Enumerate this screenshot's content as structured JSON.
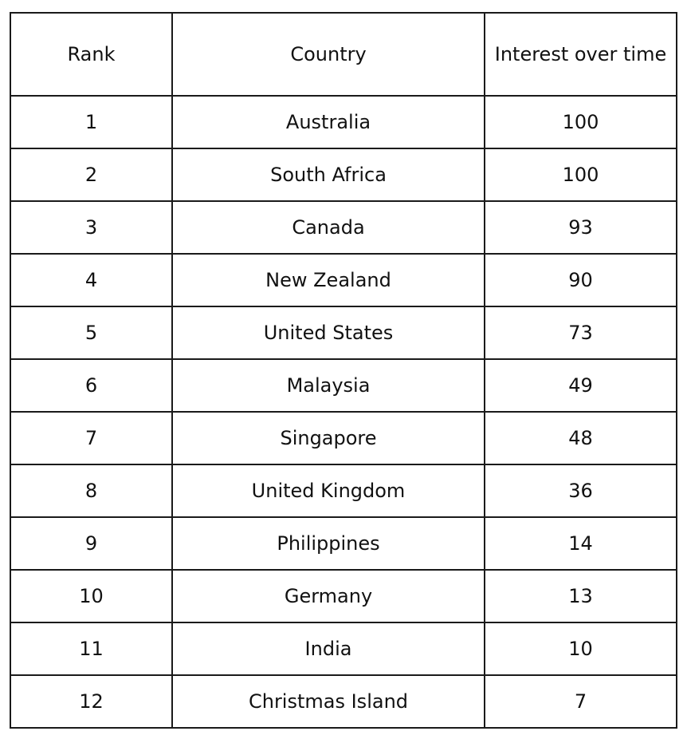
{
  "table": {
    "headers": [
      "Rank",
      "Country",
      "Interest over time"
    ],
    "rows": [
      [
        "1",
        "Australia",
        "100"
      ],
      [
        "2",
        "South Africa",
        "100"
      ],
      [
        "3",
        "Canada",
        "93"
      ],
      [
        "4",
        "New Zealand",
        "90"
      ],
      [
        "5",
        "United States",
        "73"
      ],
      [
        "6",
        "Malaysia",
        "49"
      ],
      [
        "7",
        "Singapore",
        "48"
      ],
      [
        "8",
        "United Kingdom",
        "36"
      ],
      [
        "9",
        "Philippines",
        "14"
      ],
      [
        "10",
        "Germany",
        "13"
      ],
      [
        "11",
        "India",
        "10"
      ],
      [
        "12",
        "Christmas Island",
        "7"
      ]
    ]
  }
}
